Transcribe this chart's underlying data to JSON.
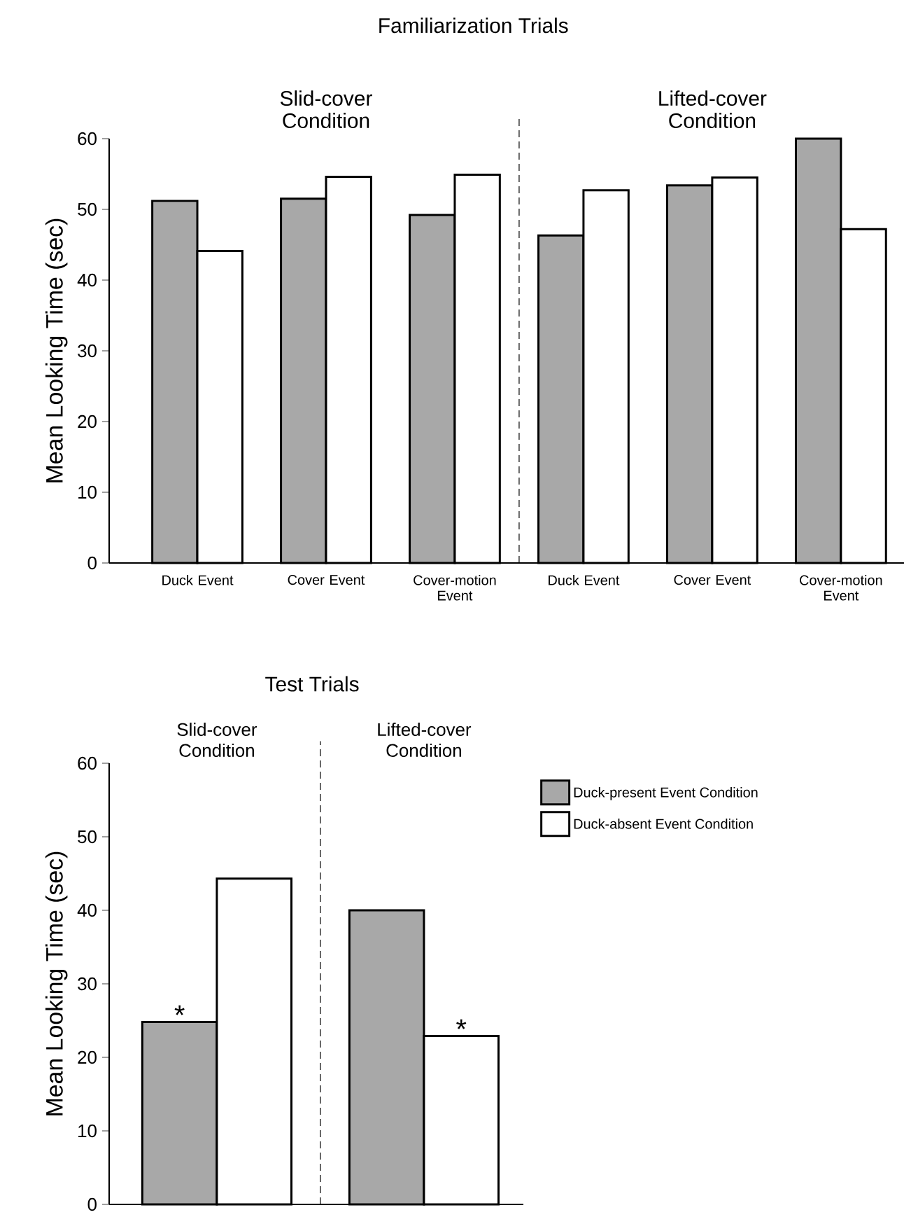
{
  "chart_data": [
    {
      "type": "bar",
      "title": "Familiarization Trials",
      "ylabel": "Mean Looking Time (sec)",
      "categories": [
        "Duck Event",
        "Cover Event",
        "Cover-motion Event",
        "Duck Event",
        "Cover Event",
        "Cover-motion Event"
      ],
      "series": [
        {
          "color": "#a8a8a8",
          "values": [
            51.2,
            51.5,
            49.2,
            46.3,
            53.4,
            60
          ]
        },
        {
          "color": "#ffffff",
          "values": [
            44.1,
            54.6,
            54.9,
            52.7,
            54.5,
            47.2
          ]
        }
      ],
      "ylim": [
        0,
        60
      ],
      "yticks": [
        0,
        10,
        20,
        30,
        40,
        50,
        60
      ],
      "annotations": [
        "Slid-cover Condition",
        "Lifted-cover Condition"
      ]
    },
    {
      "type": "bar",
      "title": "Test Trials",
      "ylabel": "Mean Looking Time (sec)",
      "categories": [
        "Slid-cover Condition",
        "Lifted-cover Condition"
      ],
      "series": [
        {
          "name": "Duck-present Event Condition",
          "color": "#a8a8a8",
          "values": [
            24.8,
            40.0
          ]
        },
        {
          "name": "Duck-absent Event Condition",
          "color": "#ffffff",
          "values": [
            44.3,
            22.9
          ]
        }
      ],
      "ylim": [
        0,
        60
      ],
      "yticks": [
        0,
        10,
        20,
        30,
        40,
        50,
        60
      ],
      "legend": "right",
      "annotations": [
        {
          "text": "*",
          "x": "Slid-cover Condition",
          "y": 24.8
        },
        {
          "text": "*",
          "x": "Lifted-cover Condition",
          "y": 22.9
        }
      ]
    }
  ]
}
